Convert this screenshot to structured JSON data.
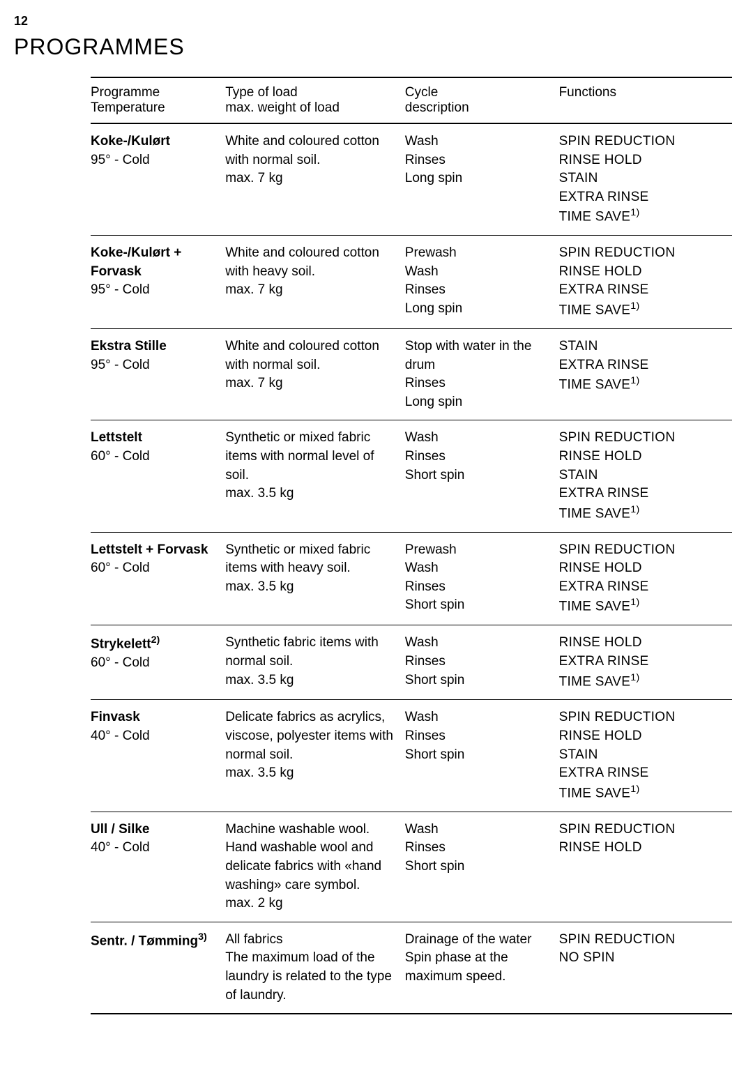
{
  "page_number": "12",
  "title": "PROGRAMMES",
  "table": {
    "headers": {
      "programme_l1": "Programme",
      "programme_l2": "Temperature",
      "type_l1": "Type of load",
      "type_l2": "max. weight of load",
      "cycle_l1": "Cycle",
      "cycle_l2": "description",
      "functions": "Functions"
    },
    "rows": [
      {
        "name": "Koke-/Kulørt",
        "temp": "95° - Cold",
        "type": "White and coloured cotton with normal soil.\nmax. 7 kg",
        "cycle": "Wash\nRinses\nLong spin",
        "functions": "SPIN REDUCTION\nRINSE HOLD\nSTAIN\nEXTRA RINSE\nTIME SAVE",
        "functions_sup": "1)"
      },
      {
        "name": "Koke-/Kulørt + Forvask",
        "temp": "95° - Cold",
        "type": "White and coloured cotton with heavy soil.\nmax. 7 kg",
        "cycle": "Prewash\nWash\nRinses\nLong spin",
        "functions": "SPIN REDUCTION\nRINSE HOLD\nEXTRA RINSE\nTIME SAVE",
        "functions_sup": "1)"
      },
      {
        "name": "Ekstra Stille",
        "temp": "95° - Cold",
        "type": "White and coloured cotton with normal soil.\nmax. 7 kg",
        "cycle": "Stop with water in the drum\nRinses\nLong spin",
        "functions": "STAIN\nEXTRA RINSE\nTIME SAVE",
        "functions_sup": "1)"
      },
      {
        "name": "Lettstelt",
        "temp": "60° - Cold",
        "type": "Synthetic or mixed fabric items with normal level of soil.\nmax. 3.5 kg",
        "cycle": "Wash\nRinses\nShort spin",
        "functions": "SPIN REDUCTION\nRINSE HOLD\nSTAIN\nEXTRA RINSE\nTIME SAVE",
        "functions_sup": "1)"
      },
      {
        "name": "Lettstelt + Forvask",
        "temp": "60° - Cold",
        "type": "Synthetic or mixed fabric items with heavy soil.\nmax. 3.5 kg",
        "cycle": "Prewash\nWash\nRinses\nShort spin",
        "functions": "SPIN REDUCTION\nRINSE HOLD\nEXTRA RINSE\nTIME SAVE",
        "functions_sup": "1)"
      },
      {
        "name": "Strykelett",
        "name_sup": "2)",
        "temp": "60° - Cold",
        "type": "Synthetic fabric items with normal soil.\nmax. 3.5 kg",
        "cycle": "Wash\nRinses\nShort spin",
        "functions": "RINSE HOLD\nEXTRA RINSE\nTIME SAVE",
        "functions_sup": "1)"
      },
      {
        "name": "Finvask",
        "temp": "40° - Cold",
        "type": "Delicate fabrics as acrylics, viscose, polyester items with normal soil.\nmax. 3.5 kg",
        "cycle": "Wash\nRinses\nShort spin",
        "functions": "SPIN REDUCTION\nRINSE HOLD\nSTAIN\nEXTRA RINSE\nTIME SAVE",
        "functions_sup": "1)"
      },
      {
        "name": "Ull / Silke",
        "temp": "40° - Cold",
        "type": "Machine washable wool. Hand washable wool and delicate fabrics with «hand washing» care symbol.\nmax. 2 kg",
        "cycle": "Wash\nRinses\nShort spin",
        "functions": "SPIN REDUCTION\nRINSE HOLD",
        "functions_sup": ""
      },
      {
        "name": "Sentr. / Tømming",
        "name_sup": "3)",
        "temp": "",
        "type": "All fabrics\nThe maximum load of the laundry is related to the type of laundry.",
        "cycle": "Drainage of the water\nSpin phase at the maximum speed.",
        "functions": "SPIN REDUCTION\nNO SPIN",
        "functions_sup": ""
      }
    ]
  }
}
